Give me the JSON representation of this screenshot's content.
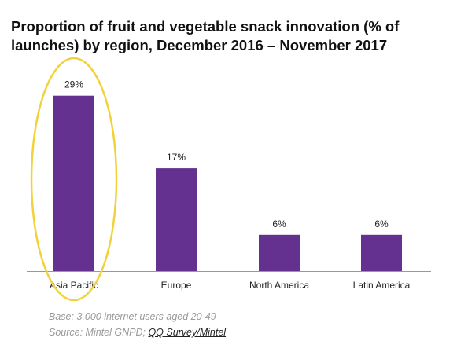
{
  "chart_data": {
    "type": "bar",
    "title": "Proportion of fruit and vegetable snack innovation (% of launches) by region, December 2016 – November 2017",
    "categories": [
      "Asia Pacific",
      "Europe",
      "North America",
      "Latin America"
    ],
    "values": [
      29,
      17,
      6,
      6
    ],
    "data_labels": [
      "29%",
      "17%",
      "6%",
      "6%"
    ],
    "unit": "%",
    "ylim": [
      0,
      30
    ],
    "grid": false,
    "highlighted_category": "Asia Pacific"
  },
  "colors": {
    "bar": "#653190",
    "highlight_ring": "#f2d23a",
    "axis": "#999999"
  },
  "footer": {
    "base": "Base: 3,000 internet users aged 20-49",
    "source_prefix": "Source: Mintel GNPD; ",
    "source_link": "QQ Survey/Mintel"
  }
}
